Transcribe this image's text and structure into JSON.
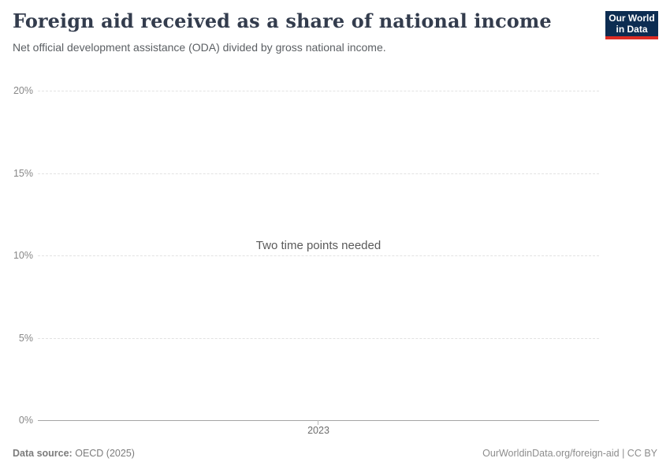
{
  "header": {
    "title": "Foreign aid received as a share of national income",
    "subtitle": "Net official development assistance (ODA) divided by gross national income.",
    "logo": {
      "line1": "Our World",
      "line2": "in Data",
      "background_color": "#0d2d52",
      "accent_color": "#dd2c24"
    }
  },
  "chart_data": {
    "type": "line",
    "title": "Foreign aid received as a share of national income",
    "subtitle": "Net official development assistance (ODA) divided by gross national income.",
    "series": [],
    "message": "Two time points needed",
    "xlabel": "",
    "ylabel": "",
    "x_ticks": [
      "2023"
    ],
    "y_ticks": [
      {
        "label": "0%",
        "value": 0
      },
      {
        "label": "5%",
        "value": 5
      },
      {
        "label": "10%",
        "value": 10
      },
      {
        "label": "15%",
        "value": 15
      },
      {
        "label": "20%",
        "value": 20
      }
    ],
    "ylim": [
      0,
      20
    ],
    "grid": true,
    "gridline_color": "#e2e2e2",
    "axis_line_color": "#a5a5a5"
  },
  "footer": {
    "source_label": "Data source:",
    "source_value": "OECD (2025)",
    "credit": "OurWorldinData.org/foreign-aid | CC BY"
  }
}
